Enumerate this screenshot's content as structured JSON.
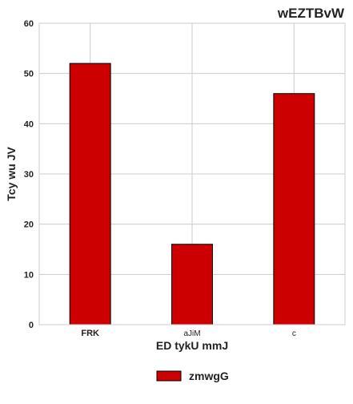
{
  "chart_data": {
    "type": "bar",
    "title": "wEZTBvW",
    "xlabel": "ED tykU mmJ",
    "ylabel": "Tcy wu JV",
    "categories": [
      "FRK",
      "aJiM",
      "c"
    ],
    "category_bold": [
      true,
      false,
      false
    ],
    "series": [
      {
        "name": "zmwgG",
        "values": [
          52,
          16,
          46
        ],
        "color": "#cc0000"
      }
    ],
    "ylim": [
      0,
      60
    ],
    "yticks": [
      0,
      10,
      20,
      30,
      40,
      50,
      60
    ],
    "grid": true,
    "legend_position": "bottom-center"
  }
}
